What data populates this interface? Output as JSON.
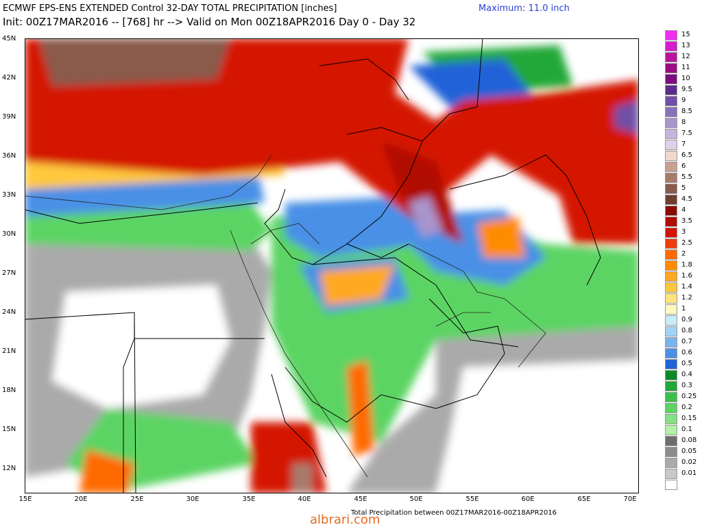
{
  "header": {
    "title_line1": "ECMWF EPS-ENS EXTENDED Control 32-DAY TOTAL PRECIPITATION [inches]",
    "maximum": "Maximum: 11.0 inch",
    "title_line2": "Init: 00Z17MAR2016 -- [768] hr --> Valid on Mon 00Z18APR2016  Day 0 - Day 32"
  },
  "axes": {
    "lat_labels": [
      "45N",
      "42N",
      "39N",
      "36N",
      "33N",
      "30N",
      "27N",
      "24N",
      "21N",
      "18N",
      "15N",
      "12N"
    ],
    "lon_labels": [
      "15E",
      "20E",
      "25E",
      "30E",
      "35E",
      "40E",
      "45E",
      "50E",
      "55E",
      "60E",
      "65E",
      "70E"
    ]
  },
  "legend": {
    "entries": [
      {
        "label": "15",
        "color": "#f22cf2"
      },
      {
        "label": "13",
        "color": "#d61ccf"
      },
      {
        "label": "12",
        "color": "#b8149c"
      },
      {
        "label": "11",
        "color": "#9c0c84"
      },
      {
        "label": "10",
        "color": "#7e0a80"
      },
      {
        "label": "9.5",
        "color": "#5b2d8e"
      },
      {
        "label": "9",
        "color": "#6f4fa8"
      },
      {
        "label": "8.5",
        "color": "#8a72b8"
      },
      {
        "label": "8",
        "color": "#a994cc"
      },
      {
        "label": "7.5",
        "color": "#c4b6da"
      },
      {
        "label": "7",
        "color": "#ddd2e8"
      },
      {
        "label": "6.5",
        "color": "#f0d8cc"
      },
      {
        "label": "6",
        "color": "#c9a08f"
      },
      {
        "label": "5.5",
        "color": "#a87a6c"
      },
      {
        "label": "5",
        "color": "#8a5a4c"
      },
      {
        "label": "4.5",
        "color": "#6e3e30"
      },
      {
        "label": "4",
        "color": "#8c0a00"
      },
      {
        "label": "3.5",
        "color": "#b00c00"
      },
      {
        "label": "3",
        "color": "#d41400"
      },
      {
        "label": "2.5",
        "color": "#ee3c0c"
      },
      {
        "label": "2",
        "color": "#ff6a00"
      },
      {
        "label": "1.8",
        "color": "#ff8c00"
      },
      {
        "label": "1.6",
        "color": "#ffa820"
      },
      {
        "label": "1.4",
        "color": "#ffc83c"
      },
      {
        "label": "1.2",
        "color": "#ffe47c"
      },
      {
        "label": "1",
        "color": "#fff8c0"
      },
      {
        "label": "0.9",
        "color": "#c8ecf8"
      },
      {
        "label": "0.8",
        "color": "#a0d4f4"
      },
      {
        "label": "0.7",
        "color": "#78b4ee"
      },
      {
        "label": "0.6",
        "color": "#4a90e6"
      },
      {
        "label": "0.5",
        "color": "#2062d8"
      },
      {
        "label": "0.4",
        "color": "#0c8a28"
      },
      {
        "label": "0.3",
        "color": "#20a838"
      },
      {
        "label": "0.25",
        "color": "#3cc04c"
      },
      {
        "label": "0.2",
        "color": "#5cd464"
      },
      {
        "label": "0.15",
        "color": "#84e284"
      },
      {
        "label": "0.1",
        "color": "#b4f0a8"
      },
      {
        "label": "0.08",
        "color": "#6e6e6e"
      },
      {
        "label": "0.05",
        "color": "#8c8c8c"
      },
      {
        "label": "0.02",
        "color": "#aaaaaa"
      },
      {
        "label": "0.01",
        "color": "#c8c8c8"
      },
      {
        "label": "",
        "color": "#ffffff"
      }
    ]
  },
  "footer": {
    "caption": "Total Precipitation between 00Z17MAR2016-00Z18APR2016",
    "watermark": "albrari.com"
  }
}
